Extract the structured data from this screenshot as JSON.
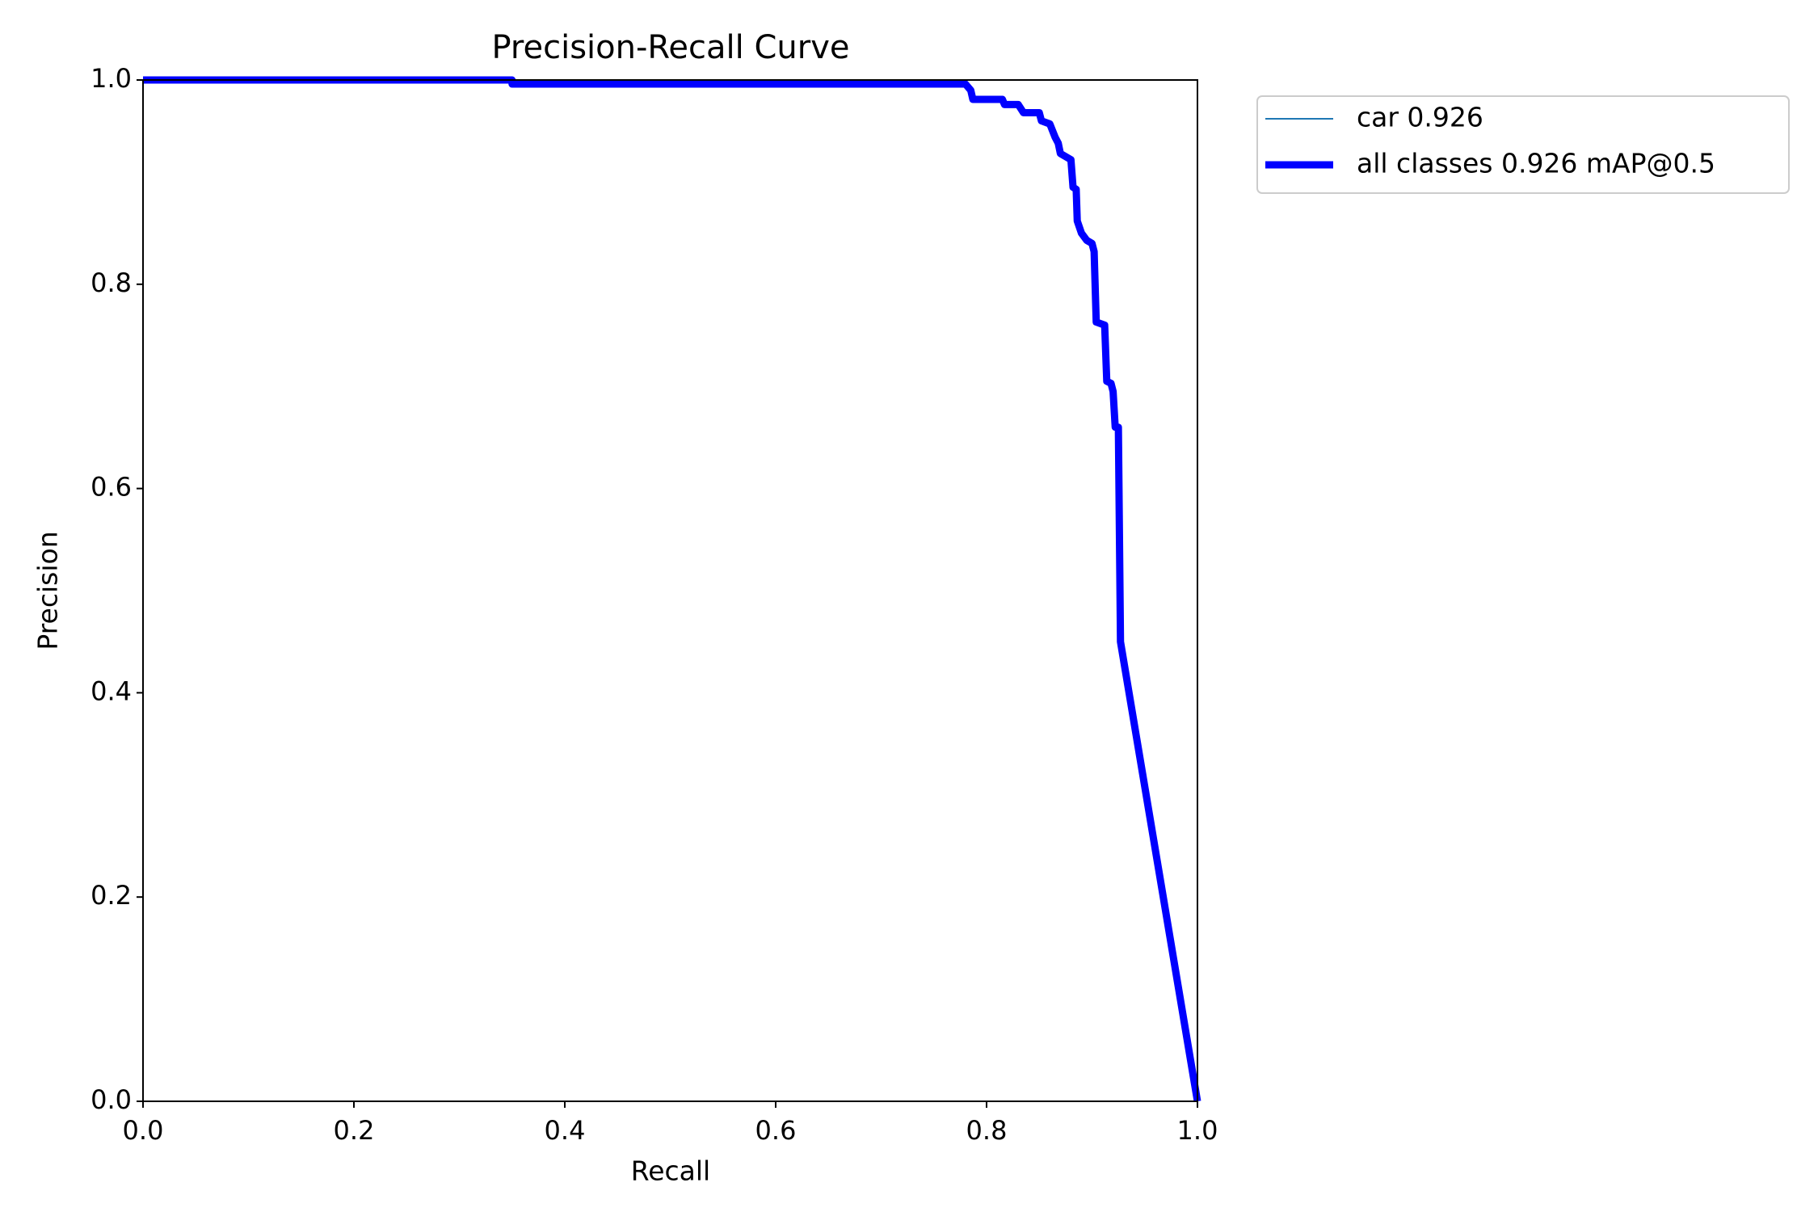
{
  "chart_data": {
    "type": "line",
    "title": "Precision-Recall Curve",
    "xlabel": "Recall",
    "ylabel": "Precision",
    "x": [
      0,
      0.35,
      0.35,
      0.78,
      0.785,
      0.787,
      0.815,
      0.817,
      0.83,
      0.835,
      0.85,
      0.852,
      0.86,
      0.865,
      0.868,
      0.87,
      0.88,
      0.882,
      0.885,
      0.886,
      0.89,
      0.895,
      0.9,
      0.902,
      0.904,
      0.912,
      0.914,
      0.918,
      0.92,
      0.922,
      0.925,
      0.927,
      1.0
    ],
    "series": [
      {
        "name": "car 0.926",
        "color": "#1f77b4",
        "linewidth": 2,
        "values": [
          1.0,
          1.0,
          0.996,
          0.996,
          0.99,
          0.981,
          0.981,
          0.976,
          0.976,
          0.968,
          0.968,
          0.96,
          0.957,
          0.944,
          0.938,
          0.928,
          0.922,
          0.895,
          0.893,
          0.862,
          0.85,
          0.843,
          0.84,
          0.832,
          0.763,
          0.76,
          0.705,
          0.703,
          0.695,
          0.66,
          0.66,
          0.45,
          0.0
        ]
      },
      {
        "name": "all classes 0.926 mAP@0.5",
        "color": "#0000ff",
        "linewidth": 9,
        "values": [
          1.0,
          1.0,
          0.996,
          0.996,
          0.99,
          0.981,
          0.981,
          0.976,
          0.976,
          0.968,
          0.968,
          0.96,
          0.957,
          0.944,
          0.938,
          0.928,
          0.922,
          0.895,
          0.893,
          0.862,
          0.85,
          0.843,
          0.84,
          0.832,
          0.763,
          0.76,
          0.705,
          0.703,
          0.695,
          0.66,
          0.66,
          0.45,
          0.0
        ]
      }
    ],
    "xlim": [
      0,
      1
    ],
    "ylim": [
      0,
      1
    ],
    "xticks": [
      {
        "value": 0,
        "label": "0.0"
      },
      0.2,
      0.4,
      0.6,
      0.8,
      {
        "value": 1,
        "label": "1.0"
      }
    ],
    "yticks": [
      {
        "value": 0,
        "label": "0.0"
      },
      0.2,
      0.4,
      0.6,
      0.8,
      {
        "value": 1,
        "label": "1.0"
      }
    ]
  }
}
